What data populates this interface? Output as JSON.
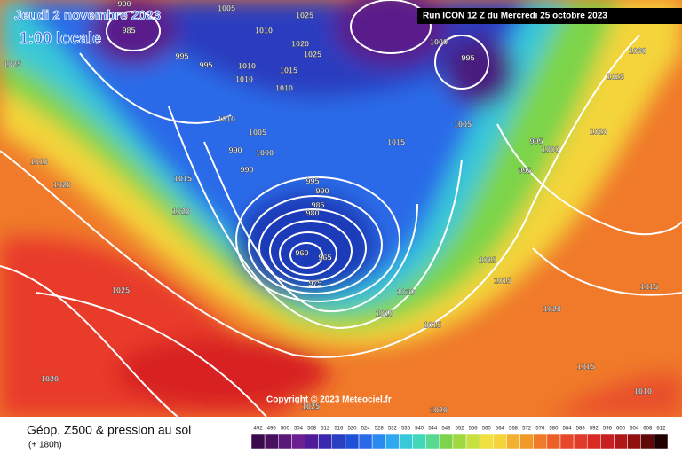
{
  "header": {
    "date": "Jeudi 2 novembre 2023",
    "time": "1:00 locale",
    "run": "Run ICON 12 Z du Mercredi 25 octobre 2023"
  },
  "footer": {
    "copyright": "Copyright © 2023 Meteociel.fr",
    "title": "Géop. Z500 & pression au sol",
    "lead": "(+ 180h)"
  },
  "isobar_labels": [
    990,
    985,
    995,
    995,
    1005,
    1010,
    1025,
    1020,
    1015,
    1025,
    1010,
    1010,
    1010,
    1010,
    1005,
    990,
    990,
    1000,
    995,
    990,
    985,
    980,
    960,
    965,
    975,
    1000,
    995,
    1005,
    1015,
    995,
    1000,
    995,
    1025,
    1010,
    1020,
    1015,
    1020,
    1025,
    1015,
    1015,
    1010,
    1010,
    1015,
    1020,
    1030,
    1025,
    1020,
    1015,
    1010,
    1015,
    1025,
    1020,
    1020
  ],
  "legend": {
    "labels": [
      492,
      496,
      500,
      504,
      508,
      512,
      516,
      520,
      524,
      528,
      532,
      536,
      540,
      544,
      548,
      552,
      556,
      560,
      564,
      568,
      572,
      576,
      580,
      584,
      588,
      592,
      596,
      600,
      604,
      608,
      612
    ],
    "colors": [
      "#3a0a4a",
      "#4a1060",
      "#5a1878",
      "#6a2090",
      "#501a9a",
      "#3a28b0",
      "#2a3ec0",
      "#2050d8",
      "#2a6ae8",
      "#2a8af0",
      "#30a8f0",
      "#38c8d8",
      "#40d8b8",
      "#58d890",
      "#7cd44a",
      "#a0d840",
      "#c8e040",
      "#f0e040",
      "#f4d43a",
      "#f4b030",
      "#f09828",
      "#f07a2a",
      "#ec6028",
      "#e8482a",
      "#e03a2a",
      "#d82a22",
      "#c82020",
      "#b01818",
      "#901010",
      "#600808",
      "#200000"
    ]
  }
}
